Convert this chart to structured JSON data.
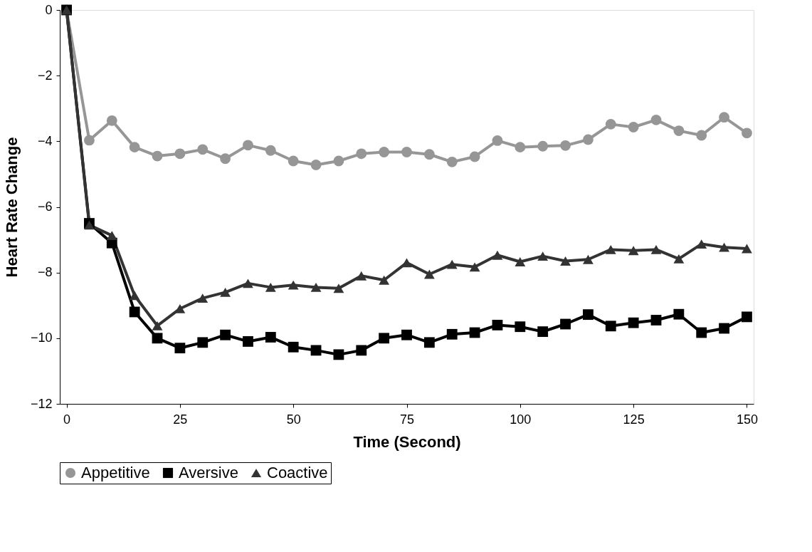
{
  "chart_data": {
    "type": "line",
    "xlabel": "Time (Second)",
    "ylabel": "Heart Rate Change",
    "x": [
      0,
      5,
      10,
      15,
      20,
      25,
      30,
      35,
      40,
      45,
      50,
      55,
      60,
      65,
      70,
      75,
      80,
      85,
      90,
      95,
      100,
      105,
      110,
      115,
      120,
      125,
      130,
      135,
      140,
      145,
      150
    ],
    "series": [
      {
        "name": "Appetitive",
        "color": "#969696",
        "marker": "circle",
        "values": [
          0,
          -3.97,
          -3.37,
          -4.18,
          -4.45,
          -4.38,
          -4.25,
          -4.53,
          -4.12,
          -4.28,
          -4.6,
          -4.72,
          -4.6,
          -4.38,
          -4.33,
          -4.33,
          -4.4,
          -4.63,
          -4.47,
          -3.98,
          -4.18,
          -4.15,
          -4.13,
          -3.95,
          -3.48,
          -3.57,
          -3.35,
          -3.68,
          -3.82,
          -3.27,
          -3.75
        ]
      },
      {
        "name": "Aversive",
        "color": "#000000",
        "marker": "square",
        "values": [
          0,
          -6.5,
          -7.1,
          -9.2,
          -10.0,
          -10.3,
          -10.13,
          -9.9,
          -10.1,
          -9.97,
          -10.27,
          -10.37,
          -10.5,
          -10.37,
          -10.0,
          -9.9,
          -10.13,
          -9.88,
          -9.83,
          -9.6,
          -9.65,
          -9.8,
          -9.57,
          -9.28,
          -9.63,
          -9.53,
          -9.45,
          -9.27,
          -9.83,
          -9.7,
          -9.35
        ]
      },
      {
        "name": "Coactive",
        "color": "#333333",
        "marker": "triangle",
        "values": [
          0,
          -6.55,
          -6.87,
          -8.7,
          -9.62,
          -9.1,
          -8.78,
          -8.6,
          -8.33,
          -8.45,
          -8.38,
          -8.45,
          -8.48,
          -8.1,
          -8.23,
          -7.7,
          -8.05,
          -7.75,
          -7.83,
          -7.47,
          -7.67,
          -7.5,
          -7.65,
          -7.6,
          -7.3,
          -7.33,
          -7.3,
          -7.58,
          -7.13,
          -7.23,
          -7.27
        ]
      }
    ],
    "xlim": [
      -1.5,
      151.5
    ],
    "xticks": [
      0,
      25,
      50,
      75,
      100,
      125,
      150
    ],
    "ylim": [
      -12,
      0
    ],
    "yticks": [
      -12,
      -10,
      -8,
      -6,
      -4,
      -2,
      0
    ],
    "grid": false,
    "legend": "bottom",
    "line_style": "solid"
  }
}
